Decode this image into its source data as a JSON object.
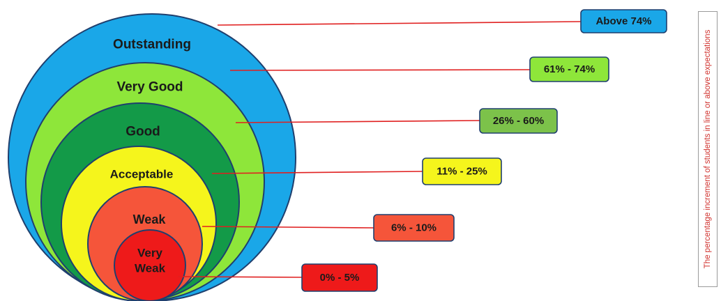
{
  "levels": [
    {
      "name_lines": [
        "Outstanding"
      ],
      "range": "Above 74%",
      "circle_color": "#1aa7e8",
      "box_color": "#1aa7e8"
    },
    {
      "name_lines": [
        "Very Good"
      ],
      "range": "61% - 74%",
      "circle_color": "#8ee63a",
      "box_color": "#8ee63a"
    },
    {
      "name_lines": [
        "Good"
      ],
      "range": "26% - 60%",
      "circle_color": "#139a48",
      "box_color": "#7cc24a"
    },
    {
      "name_lines": [
        "Acceptable"
      ],
      "range": "11% - 25%",
      "circle_color": "#f5f51c",
      "box_color": "#f5f51c"
    },
    {
      "name_lines": [
        "Weak"
      ],
      "range": "6% - 10%",
      "circle_color": "#f5553a",
      "box_color": "#f5553a"
    },
    {
      "name_lines": [
        "Very",
        "Weak"
      ],
      "range": "0% - 5%",
      "circle_color": "#ee1a1a",
      "box_color": "#ee1a1a"
    }
  ],
  "connector_color": "#e02020",
  "outline_color": "#1f3f6e",
  "side_caption": "The percentage increment of students in line or above expectations"
}
